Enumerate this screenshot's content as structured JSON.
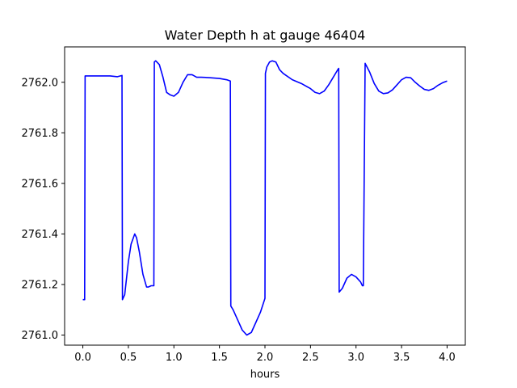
{
  "chart_data": {
    "type": "line",
    "title": "Water Depth h at gauge 46404",
    "xlabel": "hours",
    "ylabel": "",
    "xlim": [
      -0.2,
      4.2
    ],
    "ylim": [
      2760.96,
      2762.14
    ],
    "xticks": [
      0.0,
      0.5,
      1.0,
      1.5,
      2.0,
      2.5,
      3.0,
      3.5,
      4.0
    ],
    "xtick_labels": [
      "0.0",
      "0.5",
      "1.0",
      "1.5",
      "2.0",
      "2.5",
      "3.0",
      "3.5",
      "4.0"
    ],
    "yticks": [
      2761.0,
      2761.2,
      2761.4,
      2761.6,
      2761.8,
      2762.0
    ],
    "ytick_labels": [
      "2761.0",
      "2761.2",
      "2761.4",
      "2761.6",
      "2761.8",
      "2762.0"
    ],
    "grid": false,
    "colors": {
      "series": "#0000ff"
    },
    "series": [
      {
        "x": [
          0.0,
          0.02,
          0.025,
          0.1,
          0.2,
          0.3,
          0.38,
          0.43,
          0.435,
          0.46,
          0.5,
          0.53,
          0.57,
          0.59,
          0.62,
          0.66,
          0.7,
          0.72,
          0.75,
          0.78,
          0.785,
          0.8,
          0.84,
          0.88,
          0.92,
          0.96,
          1.0,
          1.05,
          1.1,
          1.15,
          1.2,
          1.25,
          1.3,
          1.4,
          1.5,
          1.58,
          1.62,
          1.625,
          1.65,
          1.7,
          1.75,
          1.8,
          1.85,
          1.9,
          1.95,
          2.0,
          2.005,
          2.02,
          2.05,
          2.08,
          2.12,
          2.16,
          2.2,
          2.3,
          2.4,
          2.5,
          2.55,
          2.6,
          2.65,
          2.7,
          2.75,
          2.8,
          2.81,
          2.815,
          2.85,
          2.9,
          2.95,
          3.0,
          3.05,
          3.07,
          3.08,
          3.1,
          3.15,
          3.2,
          3.25,
          3.3,
          3.35,
          3.4,
          3.45,
          3.5,
          3.55,
          3.6,
          3.65,
          3.7,
          3.75,
          3.8,
          3.85,
          3.9,
          3.95,
          4.0
        ],
        "y": [
          2761.14,
          2761.14,
          2762.025,
          2762.025,
          2762.025,
          2762.025,
          2762.022,
          2762.027,
          2761.14,
          2761.16,
          2761.29,
          2761.36,
          2761.4,
          2761.385,
          2761.33,
          2761.24,
          2761.19,
          2761.19,
          2761.195,
          2761.195,
          2762.08,
          2762.085,
          2762.07,
          2762.02,
          2761.96,
          2761.95,
          2761.945,
          2761.96,
          2762.0,
          2762.03,
          2762.03,
          2762.02,
          2762.02,
          2762.018,
          2762.015,
          2762.01,
          2762.005,
          2761.115,
          2761.1,
          2761.06,
          2761.02,
          2761.0,
          2761.01,
          2761.05,
          2761.09,
          2761.145,
          2762.035,
          2762.06,
          2762.08,
          2762.085,
          2762.08,
          2762.05,
          2762.035,
          2762.01,
          2761.995,
          2761.975,
          2761.96,
          2761.955,
          2761.965,
          2761.99,
          2762.02,
          2762.05,
          2762.055,
          2761.17,
          2761.185,
          2761.225,
          2761.24,
          2761.23,
          2761.21,
          2761.195,
          2761.195,
          2762.075,
          2762.04,
          2761.995,
          2761.965,
          2761.955,
          2761.958,
          2761.97,
          2761.99,
          2762.01,
          2762.02,
          2762.018,
          2762.0,
          2761.985,
          2761.972,
          2761.968,
          2761.975,
          2761.988,
          2761.998,
          2762.005
        ]
      }
    ]
  }
}
